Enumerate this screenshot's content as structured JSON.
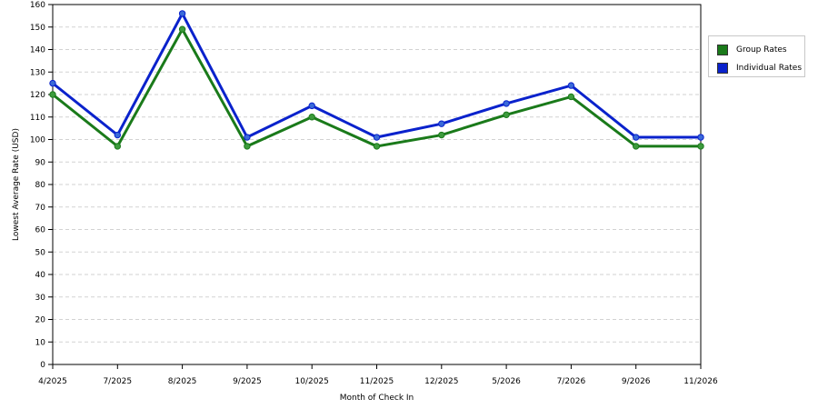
{
  "chart_data": {
    "type": "line",
    "title": "",
    "xlabel": "Month of Check In",
    "ylabel": "Lowest Average Rate (USD)",
    "ylim": [
      0,
      160
    ],
    "yticks": [
      0,
      10,
      20,
      30,
      40,
      50,
      60,
      70,
      80,
      90,
      100,
      110,
      120,
      130,
      140,
      150,
      160
    ],
    "grid": true,
    "legend_position": "right",
    "categories": [
      "4/2025",
      "7/2025",
      "8/2025",
      "9/2025",
      "10/2025",
      "11/2025",
      "12/2025",
      "5/2026",
      "7/2026",
      "9/2026",
      "11/2026"
    ],
    "series": [
      {
        "name": "Group Rates",
        "color": "#1a7a1a",
        "marker_color": "#3d9b3d",
        "values": [
          120,
          97,
          149,
          97,
          110,
          97,
          102,
          111,
          119,
          97,
          97
        ]
      },
      {
        "name": "Individual Rates",
        "color": "#0a22cc",
        "marker_color": "#3a6ad8",
        "values": [
          125,
          102,
          156,
          101,
          115,
          101,
          107,
          116,
          124,
          101,
          101
        ]
      }
    ]
  }
}
